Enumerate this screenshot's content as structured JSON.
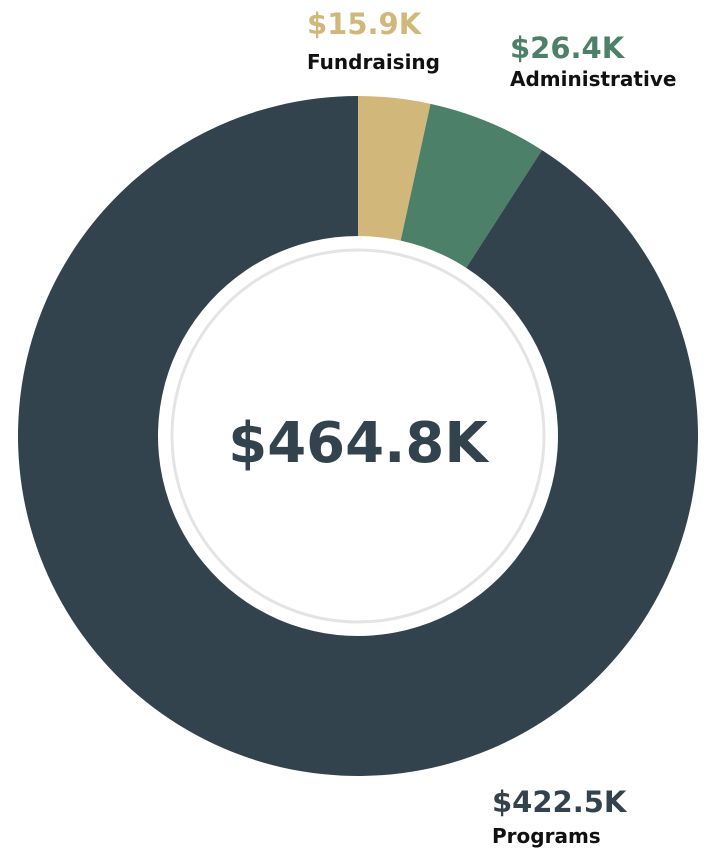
{
  "chart_data": {
    "type": "pie",
    "donut": true,
    "total_label": "$464.8K",
    "slices": [
      {
        "label": "Fundraising",
        "value_label": "$15.9K",
        "value": 15.9,
        "color": "#d2b77b"
      },
      {
        "label": "Administrative",
        "value_label": "$26.4K",
        "value": 26.4,
        "color": "#4c8068"
      },
      {
        "label": "Programs",
        "value_label": "$422.5K",
        "value": 422.5,
        "color": "#33434d"
      }
    ],
    "colors": {
      "text_dark": "#111111",
      "center_text": "#33434d",
      "inner_ring": "#e4e4e4"
    }
  }
}
